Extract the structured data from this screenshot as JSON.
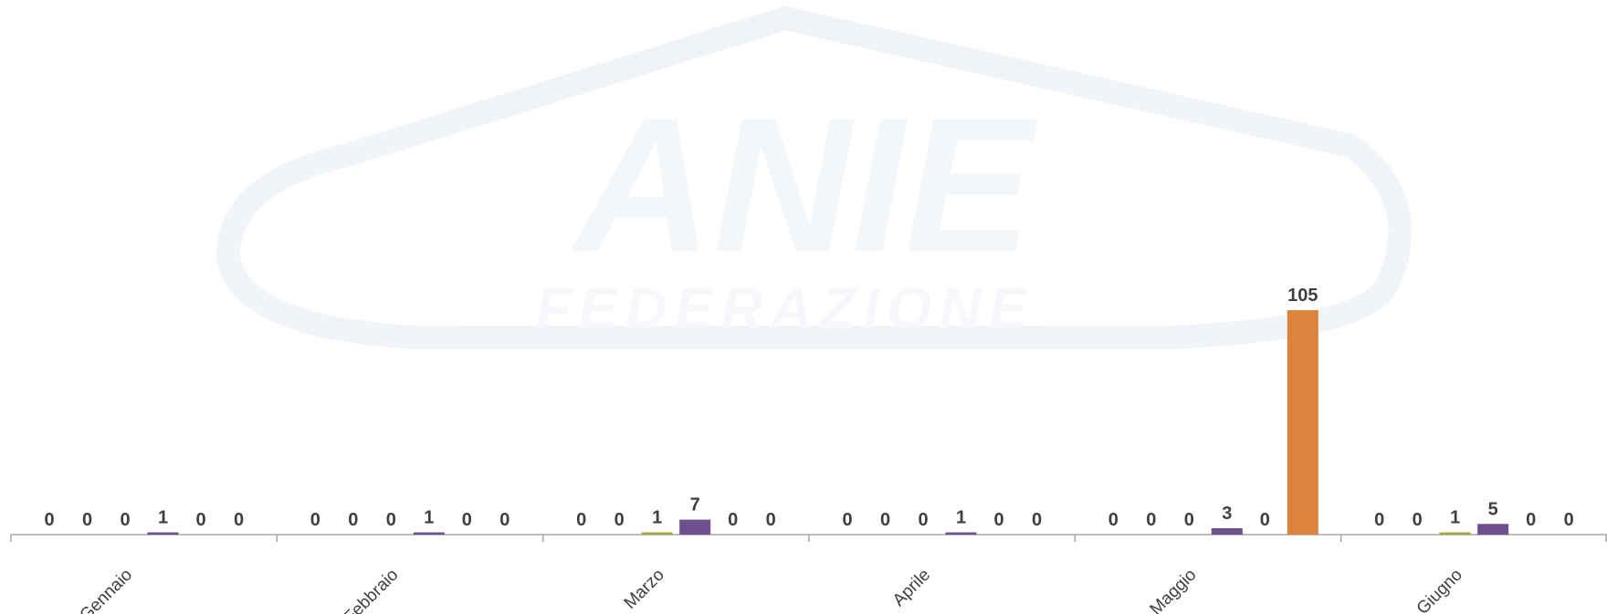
{
  "watermark": {
    "brand": "ANIE",
    "subtitle": "FEDERAZIONE"
  },
  "chart_data": {
    "type": "bar",
    "categories": [
      "Gennaio",
      "Febbraio",
      "Marzo",
      "Aprile",
      "Maggio",
      "Giugno"
    ],
    "series": [
      {
        "values": [
          0,
          0,
          0,
          0,
          0,
          0
        ],
        "color": "#4472c4"
      },
      {
        "values": [
          0,
          0,
          0,
          0,
          0,
          0
        ],
        "color": "#ed7d31"
      },
      {
        "values": [
          0,
          0,
          1,
          0,
          0,
          1
        ],
        "color": "#a5a53a"
      },
      {
        "values": [
          1,
          1,
          7,
          1,
          3,
          5
        ],
        "color": "#6e4f8f"
      },
      {
        "values": [
          0,
          0,
          0,
          0,
          0,
          0
        ],
        "color": "#5b9bd5"
      },
      {
        "values": [
          0,
          0,
          0,
          0,
          105,
          0
        ],
        "color": "#dd843c"
      }
    ],
    "ylim": [
      0,
      110
    ],
    "grid": false,
    "legend": "none",
    "xlabel": "",
    "ylabel": "",
    "title": ""
  }
}
